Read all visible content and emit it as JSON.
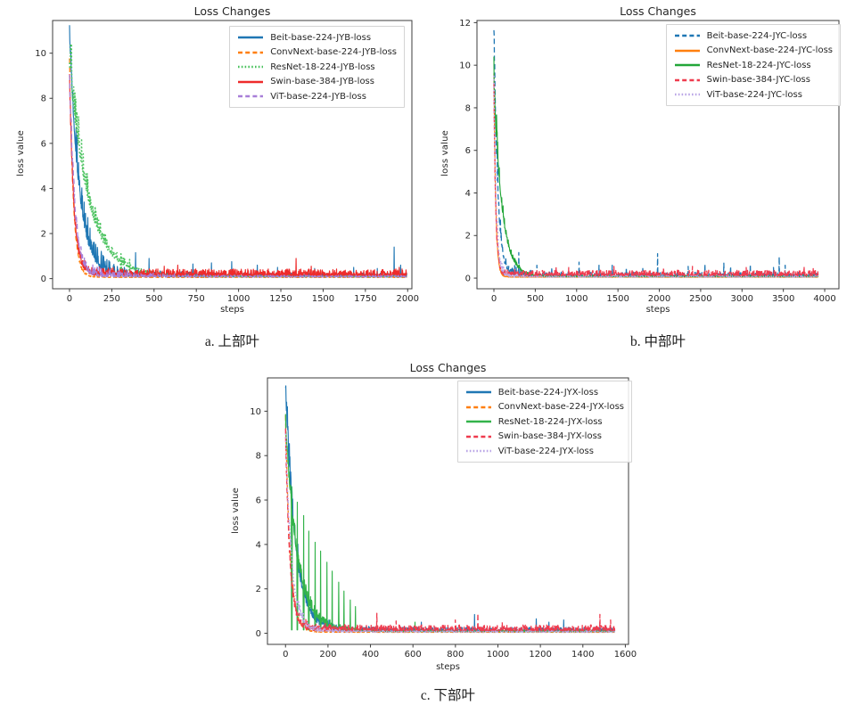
{
  "page": {
    "background": "#ffffff"
  },
  "chart_data": [
    {
      "key": "a",
      "type": "line",
      "title": "Loss Changes",
      "xlabel": "steps",
      "ylabel": "loss value",
      "caption": "a. 上部叶",
      "legend_position": "upper right",
      "grid": false,
      "xticks": [
        0,
        250,
        500,
        750,
        1000,
        1250,
        1500,
        1750,
        2000
      ],
      "yticks": [
        0,
        2,
        4,
        6,
        8,
        10
      ],
      "xlim": [
        -100,
        2025
      ],
      "ylim": [
        -0.45,
        11.45
      ],
      "data_end": 1995,
      "series": [
        {
          "name": "Beit-base-224-JYB-loss",
          "color": "#1f77b4",
          "style": "solid",
          "start": 10.9,
          "tau": 55,
          "floor": 0.07,
          "band_amp": 1.8,
          "band_tau": 200,
          "jitter": 0.18,
          "spikes": [
            [
              390,
              1.15
            ],
            [
              470,
              0.9
            ],
            [
              730,
              0.65
            ],
            [
              840,
              0.7
            ],
            [
              960,
              0.75
            ],
            [
              1110,
              0.6
            ],
            [
              1230,
              0.5
            ],
            [
              1450,
              0.45
            ],
            [
              1680,
              0.5
            ],
            [
              1820,
              0.45
            ],
            [
              1920,
              1.4
            ],
            [
              1958,
              0.6
            ]
          ]
        },
        {
          "name": "ConvNext-base-224-JYB-loss",
          "color": "#ff7f0e",
          "style": "dashed",
          "start": 9.7,
          "tau": 22,
          "floor": 0.05,
          "band_amp": 0.3,
          "band_tau": 60,
          "jitter": 0.05,
          "spikes": []
        },
        {
          "name": "ResNet-18-224-JYB-loss",
          "color": "#49c25d",
          "style": "dotted",
          "start": 9.4,
          "tau": 110,
          "floor": 0.08,
          "band_amp": 2.0,
          "band_tau": 160,
          "jitter": 0.1,
          "spikes": [
            [
              305,
              1.1
            ],
            [
              355,
              0.85
            ]
          ]
        },
        {
          "name": "Swin-base-384-JYB-loss",
          "color": "#ee2b2b",
          "style": "solid",
          "start": 8.8,
          "tau": 25,
          "floor": 0.13,
          "band_amp": 0.5,
          "band_tau": 150,
          "jitter": 0.3,
          "spikes": [
            [
              560,
              0.55
            ],
            [
              640,
              0.6
            ],
            [
              1340,
              0.9
            ],
            [
              1430,
              0.55
            ],
            [
              1950,
              0.5
            ]
          ]
        },
        {
          "name": "ViT-base-224-JYB-loss",
          "color": "#a87fd8",
          "style": "dashed",
          "start": 9.0,
          "tau": 30,
          "floor": 0.07,
          "band_amp": 0.8,
          "band_tau": 250,
          "jitter": 0.08,
          "spikes": []
        }
      ]
    },
    {
      "key": "b",
      "type": "line",
      "title": "Loss Changes",
      "xlabel": "steps",
      "ylabel": "loss value",
      "caption": "b. 中部叶",
      "legend_position": "upper right",
      "grid": false,
      "xticks": [
        0,
        500,
        1000,
        1500,
        2000,
        2500,
        3000,
        3500,
        4000
      ],
      "yticks": [
        0,
        2,
        4,
        6,
        8,
        10,
        12
      ],
      "xlim": [
        -205,
        4172
      ],
      "ylim": [
        -0.5,
        12.1
      ],
      "data_end": 3920,
      "series": [
        {
          "name": "Beit-base-224-JYC-loss",
          "color": "#1f77b4",
          "style": "dashed",
          "start": 11.5,
          "tau": 45,
          "floor": 0.06,
          "band_amp": 1.2,
          "band_tau": 220,
          "jitter": 0.22,
          "spikes": [
            [
              300,
              1.2
            ],
            [
              520,
              0.6
            ],
            [
              700,
              0.5
            ],
            [
              1030,
              0.75
            ],
            [
              1270,
              0.6
            ],
            [
              1430,
              0.6
            ],
            [
              1600,
              0.5
            ],
            [
              1800,
              0.45
            ],
            [
              1980,
              1.15
            ],
            [
              2350,
              0.55
            ],
            [
              2550,
              0.65
            ],
            [
              2780,
              0.7
            ],
            [
              2860,
              0.55
            ],
            [
              3100,
              0.65
            ],
            [
              3380,
              0.5
            ],
            [
              3450,
              1.0
            ],
            [
              3520,
              0.6
            ]
          ]
        },
        {
          "name": "ConvNext-base-224-JYC-loss",
          "color": "#ff7f0e",
          "style": "solid",
          "start": 9.6,
          "tau": 22,
          "floor": 0.04,
          "band_amp": 0.3,
          "band_tau": 60,
          "jitter": 0.04,
          "spikes": []
        },
        {
          "name": "ResNet-18-224-JYC-loss",
          "color": "#22a638",
          "style": "solid",
          "start": 9.1,
          "tau": 95,
          "floor": 0.06,
          "band_amp": 1.5,
          "band_tau": 140,
          "jitter": 0.07,
          "spikes": []
        },
        {
          "name": "Swin-base-384-JYC-loss",
          "color": "#ef3b4e",
          "style": "dashed",
          "start": 8.8,
          "tau": 22,
          "floor": 0.11,
          "band_amp": 0.4,
          "band_tau": 150,
          "jitter": 0.26,
          "spikes": [
            [
              750,
              0.55
            ],
            [
              905,
              0.5
            ],
            [
              1450,
              0.55
            ],
            [
              2050,
              0.5
            ],
            [
              2400,
              0.55
            ],
            [
              3050,
              0.5
            ],
            [
              3750,
              0.55
            ],
            [
              3860,
              0.5
            ]
          ]
        },
        {
          "name": "ViT-base-224-JYC-loss",
          "color": "#b9a5e6",
          "style": "dotted",
          "start": 8.9,
          "tau": 28,
          "floor": 0.05,
          "band_amp": 0.7,
          "band_tau": 130,
          "jitter": 0.06,
          "spikes": []
        }
      ]
    },
    {
      "key": "c",
      "type": "line",
      "title": "Loss Changes",
      "xlabel": "steps",
      "ylabel": "loss value",
      "caption": "c. 下部叶",
      "legend_position": "upper right",
      "grid": false,
      "xticks": [
        0,
        200,
        400,
        600,
        800,
        1000,
        1200,
        1400,
        1600
      ],
      "yticks": [
        0,
        2,
        4,
        6,
        8,
        10
      ],
      "xlim": [
        -85,
        1615
      ],
      "ylim": [
        -0.5,
        11.5
      ],
      "data_end": 1550,
      "series": [
        {
          "name": "Beit-base-224-JYX-loss",
          "color": "#1f77b4",
          "style": "solid",
          "start": 10.9,
          "tau": 45,
          "floor": 0.07,
          "band_amp": 1.6,
          "band_tau": 120,
          "jitter": 0.2,
          "spikes": [
            [
              640,
              0.5
            ],
            [
              890,
              0.85
            ],
            [
              1180,
              0.65
            ],
            [
              1240,
              0.5
            ],
            [
              1310,
              0.6
            ]
          ]
        },
        {
          "name": "ConvNext-base-224-JYX-loss",
          "color": "#ff7f0e",
          "style": "dashed",
          "start": 9.6,
          "tau": 22,
          "floor": 0.04,
          "band_amp": 0.3,
          "band_tau": 60,
          "jitter": 0.05,
          "spikes": []
        },
        {
          "name": "ResNet-18-224-JYX-loss",
          "color": "#33b34a",
          "style": "solid",
          "start": 9.3,
          "tau": 55,
          "floor": 0.07,
          "band_amp": 1.0,
          "band_tau": 150,
          "jitter": 0.08,
          "spikes": [
            [
              30,
              6.6
            ],
            [
              55,
              5.9
            ],
            [
              85,
              5.3
            ],
            [
              110,
              4.6
            ],
            [
              140,
              4.1
            ],
            [
              165,
              3.7
            ],
            [
              195,
              3.2
            ],
            [
              220,
              2.8
            ],
            [
              250,
              2.3
            ],
            [
              275,
              1.9
            ],
            [
              305,
              1.5
            ],
            [
              330,
              1.2
            ],
            [
              610,
              0.5
            ]
          ]
        },
        {
          "name": "Swin-base-384-JYX-loss",
          "color": "#ef3b4e",
          "style": "dashed",
          "start": 8.8,
          "tau": 20,
          "floor": 0.11,
          "band_amp": 0.5,
          "band_tau": 120,
          "jitter": 0.27,
          "spikes": [
            [
              430,
              0.9
            ],
            [
              520,
              0.55
            ],
            [
              800,
              0.6
            ],
            [
              905,
              0.9
            ],
            [
              1020,
              0.5
            ],
            [
              1480,
              0.85
            ],
            [
              1530,
              0.6
            ]
          ]
        },
        {
          "name": "ViT-base-224-JYX-loss",
          "color": "#b9a5e6",
          "style": "dotted",
          "start": 8.9,
          "tau": 28,
          "floor": 0.05,
          "band_amp": 0.7,
          "band_tau": 120,
          "jitter": 0.06,
          "spikes": []
        }
      ]
    }
  ]
}
